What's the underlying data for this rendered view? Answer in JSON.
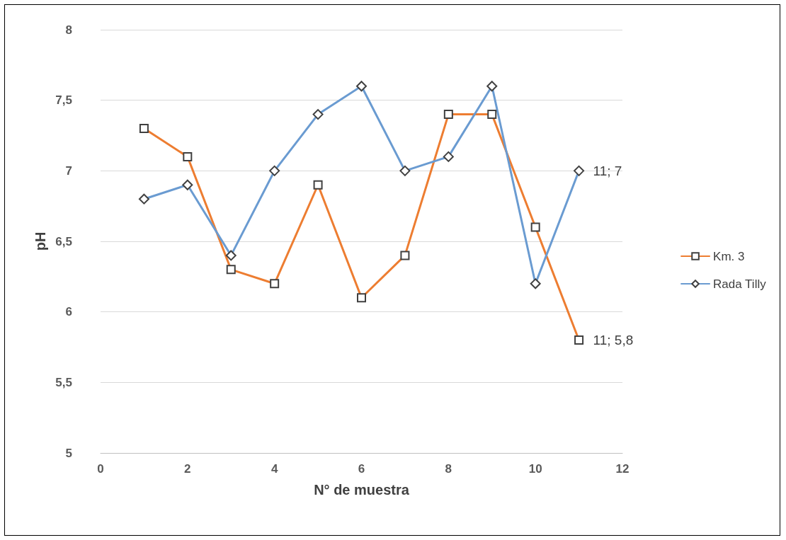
{
  "chart_data": {
    "type": "line",
    "xlabel": "N° de muestra",
    "ylabel": "pH",
    "x": [
      1,
      2,
      3,
      4,
      5,
      6,
      7,
      8,
      9,
      10,
      11
    ],
    "series": [
      {
        "name": "Km. 3",
        "color": "#ed7d31",
        "marker": "square",
        "values": [
          7.3,
          7.1,
          6.3,
          6.2,
          6.9,
          6.1,
          6.4,
          7.4,
          7.4,
          6.6,
          5.8
        ]
      },
      {
        "name": "Rada Tilly",
        "color": "#6a9bd1",
        "marker": "diamond",
        "values": [
          6.8,
          6.9,
          6.4,
          7.0,
          7.4,
          7.6,
          7.0,
          7.1,
          7.6,
          6.2,
          7.0
        ]
      }
    ],
    "xlim": [
      0,
      12
    ],
    "xticks": [
      0,
      2,
      4,
      6,
      8,
      10,
      12
    ],
    "ylim": [
      5,
      8
    ],
    "yticks": [
      5,
      {
        "value": 5.5,
        "label": "5,5"
      },
      6,
      {
        "value": 6.5,
        "label": "6,5"
      },
      7,
      {
        "value": 7.5,
        "label": "7,5"
      },
      8
    ],
    "grid": "y",
    "legend": "right",
    "line_style": "solid",
    "annotations": [
      {
        "text": "11; 7",
        "x": 11,
        "y": 7
      },
      {
        "text": "11; 5,8",
        "x": 11,
        "y": 5.8
      }
    ]
  }
}
